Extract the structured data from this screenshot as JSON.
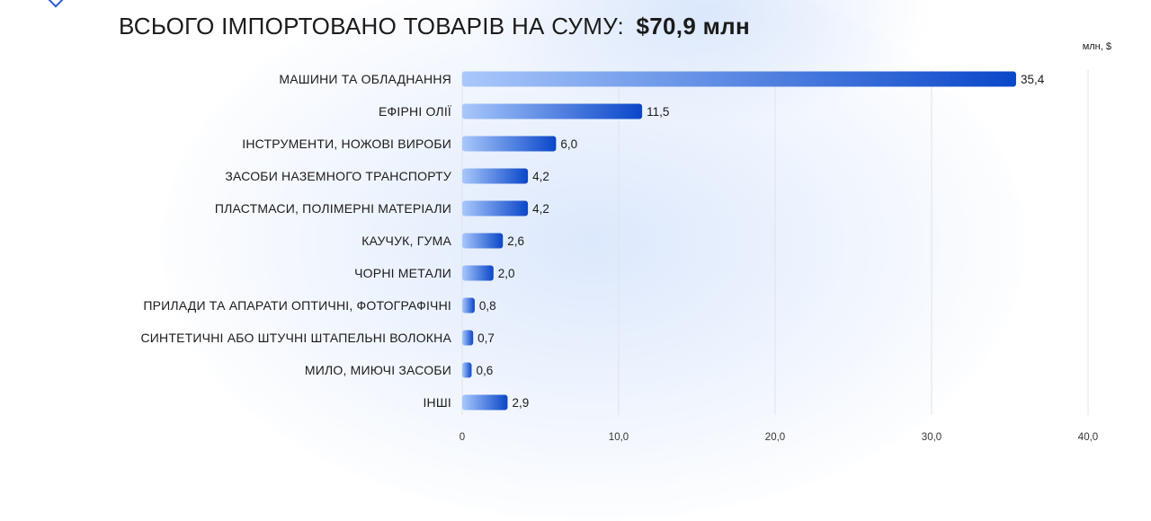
{
  "header": {
    "title": "ВСЬОГО ІМПОРТОВАНО ТОВАРІВ НА СУМУ:",
    "total": "$70,9 млн"
  },
  "chart_data": {
    "type": "bar",
    "orientation": "horizontal",
    "unit_label": "млн, $",
    "categories": [
      "МАШИНИ ТА ОБЛАДНАННЯ",
      "ЕФІРНІ ОЛІЇ",
      "ІНСТРУМЕНТИ, НОЖОВІ ВИРОБИ",
      "ЗАСОБИ НАЗЕМНОГО ТРАНСПОРТУ",
      "ПЛАСТМАСИ, ПОЛІМЕРНІ МАТЕРІАЛИ",
      "КАУЧУК, ГУМА",
      "ЧОРНІ МЕТАЛИ",
      "ПРИЛАДИ ТА АПАРАТИ ОПТИЧНІ, ФОТОГРАФІЧНІ",
      "СИНТЕТИЧНІ АБО ШТУЧНІ ШТАПЕЛЬНІ ВОЛОКНА",
      "МИЛО, МИЮЧІ ЗАСОБИ",
      "ІНШІ"
    ],
    "values": [
      35.4,
      11.5,
      6.0,
      4.2,
      4.2,
      2.6,
      2.0,
      0.8,
      0.7,
      0.6,
      2.9
    ],
    "value_labels": [
      "35,4",
      "11,5",
      "6,0",
      "4,2",
      "4,2",
      "2,6",
      "2,0",
      "0,8",
      "0,7",
      "0,6",
      "2,9"
    ],
    "xlim": [
      0,
      40
    ],
    "xticks": [
      0,
      10,
      20,
      30,
      40
    ],
    "xtick_labels": [
      "0",
      "10,0",
      "20,0",
      "30,0",
      "40,0"
    ],
    "grid": true,
    "colors": {
      "bar_start": "#a9c8fb",
      "bar_end": "#0a47c9"
    }
  }
}
